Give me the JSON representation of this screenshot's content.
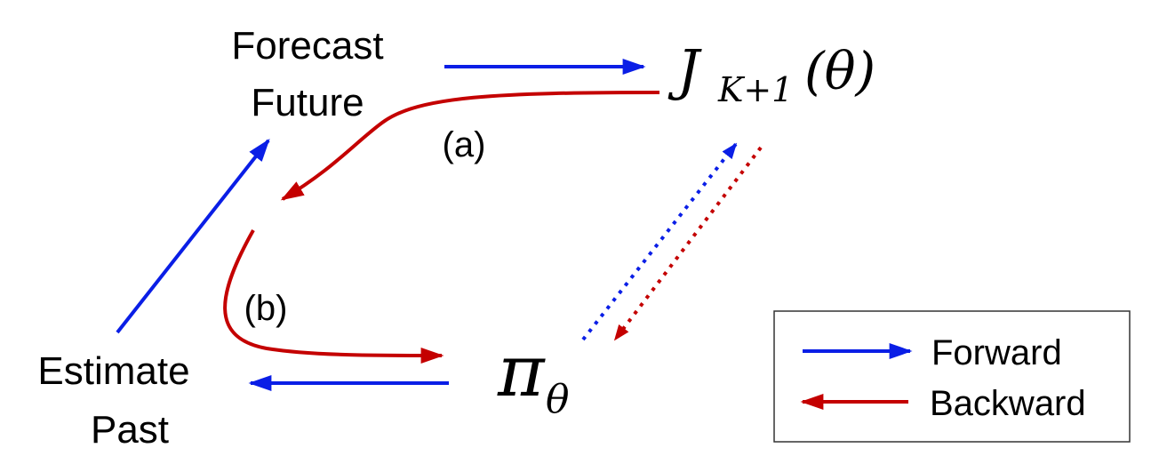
{
  "nodes": {
    "forecast": {
      "line1": "Forecast",
      "line2": "Future"
    },
    "estimate": {
      "line1": "Estimate",
      "line2": "Past"
    },
    "objective": {
      "base": "J",
      "subscript": "K+1",
      "argument": "(θ)"
    },
    "policy": {
      "base": "π",
      "subscript": "θ"
    }
  },
  "annotations": {
    "a": "(a)",
    "b": "(b)"
  },
  "legend": {
    "forward": {
      "label": "Forward",
      "color": "#0a1ee6"
    },
    "backward": {
      "label": "Backward",
      "color": "#c40000"
    }
  },
  "colors": {
    "forward": "#0a1ee6",
    "backward": "#c40000"
  }
}
